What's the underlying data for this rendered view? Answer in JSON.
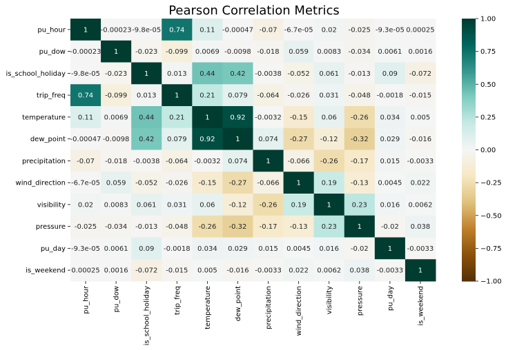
{
  "chart_data": {
    "type": "heatmap",
    "title": "Pearson Correlation Metrics",
    "variables": [
      "pu_hour",
      "pu_dow",
      "is_school_holiday",
      "trip_freq",
      "temperature",
      "dew_point",
      "precipitation",
      "wind_direction",
      "visibility",
      "pressure",
      "pu_day",
      "is_weekend"
    ],
    "values": [
      [
        1,
        -0.00023,
        -9.8e-05,
        0.74,
        0.11,
        -0.00047,
        -0.07,
        -6.7e-05,
        0.02,
        -0.025,
        -9.3e-05,
        0.00025
      ],
      [
        -0.00023,
        1,
        -0.023,
        -0.099,
        0.0069,
        -0.0098,
        -0.018,
        0.059,
        0.0083,
        -0.034,
        0.0061,
        0.0016
      ],
      [
        -9.8e-05,
        -0.023,
        1,
        0.013,
        0.44,
        0.42,
        -0.0038,
        -0.052,
        0.061,
        -0.013,
        0.09,
        -0.072
      ],
      [
        0.74,
        -0.099,
        0.013,
        1,
        0.21,
        0.079,
        -0.064,
        -0.026,
        0.031,
        -0.048,
        -0.0018,
        -0.015
      ],
      [
        0.11,
        0.0069,
        0.44,
        0.21,
        1,
        0.92,
        -0.0032,
        -0.15,
        0.06,
        -0.26,
        0.034,
        0.005
      ],
      [
        -0.00047,
        -0.0098,
        0.42,
        0.079,
        0.92,
        1,
        0.074,
        -0.27,
        -0.12,
        -0.32,
        0.029,
        -0.016
      ],
      [
        -0.07,
        -0.018,
        -0.0038,
        -0.064,
        -0.0032,
        0.074,
        1,
        -0.066,
        -0.26,
        -0.17,
        0.015,
        -0.0033
      ],
      [
        -6.7e-05,
        0.059,
        -0.052,
        -0.026,
        -0.15,
        -0.27,
        -0.066,
        1,
        0.19,
        -0.13,
        0.0045,
        0.022
      ],
      [
        0.02,
        0.0083,
        0.061,
        0.031,
        0.06,
        -0.12,
        -0.26,
        0.19,
        1,
        0.23,
        0.016,
        0.0062
      ],
      [
        -0.025,
        -0.034,
        -0.013,
        -0.048,
        -0.26,
        -0.32,
        -0.17,
        -0.13,
        0.23,
        1,
        -0.02,
        0.038
      ],
      [
        -9.3e-05,
        0.0061,
        0.09,
        -0.0018,
        0.034,
        0.029,
        0.015,
        0.0045,
        0.016,
        -0.02,
        1,
        -0.0033
      ],
      [
        0.00025,
        0.0016,
        -0.072,
        -0.015,
        0.005,
        -0.016,
        -0.0033,
        0.022,
        0.0062,
        0.038,
        -0.0033,
        1
      ]
    ],
    "labels": [
      [
        "1",
        "-0.00023",
        "-9.8e-05",
        "0.74",
        "0.11",
        "-0.00047",
        "-0.07",
        "-6.7e-05",
        "0.02",
        "-0.025",
        "-9.3e-05",
        "0.00025"
      ],
      [
        "-0.00023",
        "1",
        "-0.023",
        "-0.099",
        "0.0069",
        "-0.0098",
        "-0.018",
        "0.059",
        "0.0083",
        "-0.034",
        "0.0061",
        "0.0016"
      ],
      [
        "-9.8e-05",
        "-0.023",
        "1",
        "0.013",
        "0.44",
        "0.42",
        "-0.0038",
        "-0.052",
        "0.061",
        "-0.013",
        "0.09",
        "-0.072"
      ],
      [
        "0.74",
        "-0.099",
        "0.013",
        "1",
        "0.21",
        "0.079",
        "-0.064",
        "-0.026",
        "0.031",
        "-0.048",
        "-0.0018",
        "-0.015"
      ],
      [
        "0.11",
        "0.0069",
        "0.44",
        "0.21",
        "1",
        "0.92",
        "-0.0032",
        "-0.15",
        "0.06",
        "-0.26",
        "0.034",
        "0.005"
      ],
      [
        "-0.00047",
        "-0.0098",
        "0.42",
        "0.079",
        "0.92",
        "1",
        "0.074",
        "-0.27",
        "-0.12",
        "-0.32",
        "0.029",
        "-0.016"
      ],
      [
        "-0.07",
        "-0.018",
        "-0.0038",
        "-0.064",
        "-0.0032",
        "0.074",
        "1",
        "-0.066",
        "-0.26",
        "-0.17",
        "0.015",
        "-0.0033"
      ],
      [
        "-6.7e-05",
        "0.059",
        "-0.052",
        "-0.026",
        "-0.15",
        "-0.27",
        "-0.066",
        "1",
        "0.19",
        "-0.13",
        "0.0045",
        "0.022"
      ],
      [
        "0.02",
        "0.0083",
        "0.061",
        "0.031",
        "0.06",
        "-0.12",
        "-0.26",
        "0.19",
        "1",
        "0.23",
        "0.016",
        "0.0062"
      ],
      [
        "-0.025",
        "-0.034",
        "-0.013",
        "-0.048",
        "-0.26",
        "-0.32",
        "-0.17",
        "-0.13",
        "0.23",
        "1",
        "-0.02",
        "0.038"
      ],
      [
        "-9.3e-05",
        "0.0061",
        "0.09",
        "-0.0018",
        "0.034",
        "0.029",
        "0.015",
        "0.0045",
        "0.016",
        "-0.02",
        "1",
        "-0.0033"
      ],
      [
        "0.00025",
        "0.0016",
        "-0.072",
        "-0.015",
        "0.005",
        "-0.016",
        "-0.0033",
        "0.022",
        "0.0062",
        "0.038",
        "-0.0033",
        "1"
      ]
    ],
    "colorbar": {
      "range": [
        -1.0,
        1.0
      ],
      "ticks": [
        1.0,
        0.75,
        0.5,
        0.25,
        0.0,
        -0.25,
        -0.5,
        -0.75,
        -1.0
      ],
      "tick_labels": [
        "1.00",
        "0.75",
        "0.50",
        "0.25",
        "0.00",
        "−0.25",
        "−0.50",
        "−0.75",
        "−1.00"
      ],
      "colormap": "BrBG",
      "colormap_stops": [
        "#543005",
        "#8c510a",
        "#bf812d",
        "#dfc27d",
        "#f6e8c3",
        "#f5f5f5",
        "#c7eae5",
        "#80cdc1",
        "#35978f",
        "#01665e",
        "#003c30"
      ]
    }
  }
}
